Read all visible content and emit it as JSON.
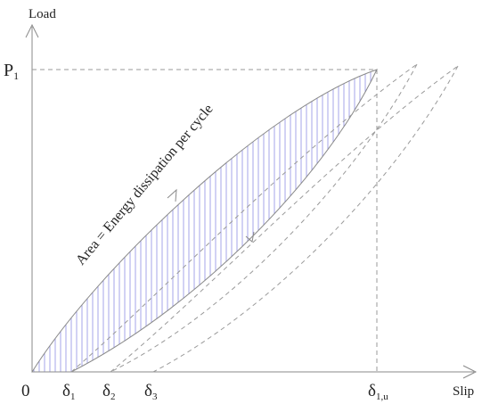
{
  "axes": {
    "y_label": "Load",
    "x_label": "Slip",
    "origin_label": "0"
  },
  "labels": {
    "p1": {
      "main": "P",
      "sub": "1"
    },
    "d1": {
      "main": "δ",
      "sub": "1"
    },
    "d2": {
      "main": "δ",
      "sub": "2"
    },
    "d3": {
      "main": "δ",
      "sub": "3"
    },
    "d1u": {
      "main": "δ",
      "sub": "1,u"
    }
  },
  "annotation": "Area = Energy dissipation per cycle",
  "colors": {
    "hatch": "#9a9ce8",
    "lines": "#8a8a8a",
    "text": "#222222"
  }
}
